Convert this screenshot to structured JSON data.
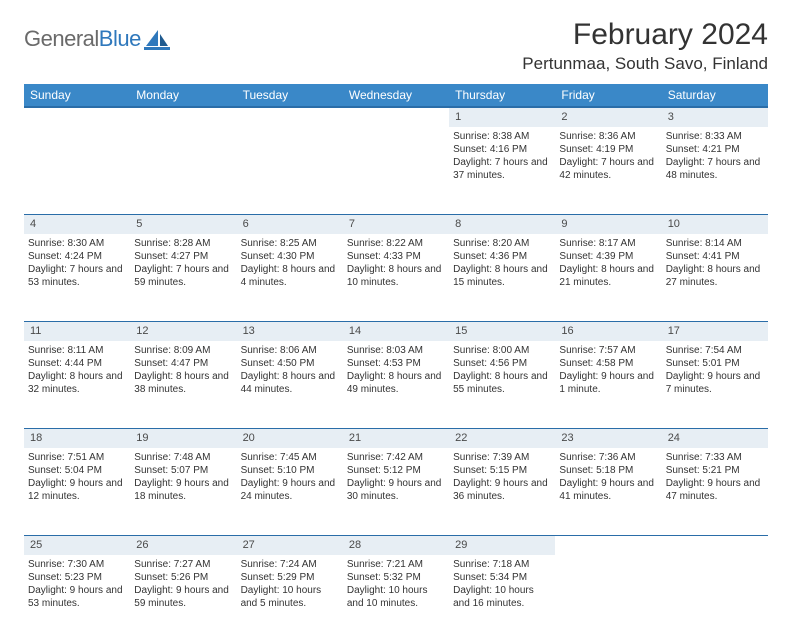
{
  "logo": {
    "word1": "General",
    "word2": "Blue"
  },
  "title": "February 2024",
  "location": "Pertunmaa, South Savo, Finland",
  "colors": {
    "header_bg": "#3a88c8",
    "header_border": "#2a6da8",
    "daynum_bg": "#e7eef4",
    "text": "#333333",
    "logo_gray": "#6a6a6a",
    "logo_blue": "#2f78bc"
  },
  "weekdays": [
    "Sunday",
    "Monday",
    "Tuesday",
    "Wednesday",
    "Thursday",
    "Friday",
    "Saturday"
  ],
  "weeks": [
    [
      null,
      null,
      null,
      null,
      {
        "n": 1,
        "sr": "8:38 AM",
        "ss": "4:16 PM",
        "dl": "7 hours and 37 minutes."
      },
      {
        "n": 2,
        "sr": "8:36 AM",
        "ss": "4:19 PM",
        "dl": "7 hours and 42 minutes."
      },
      {
        "n": 3,
        "sr": "8:33 AM",
        "ss": "4:21 PM",
        "dl": "7 hours and 48 minutes."
      }
    ],
    [
      {
        "n": 4,
        "sr": "8:30 AM",
        "ss": "4:24 PM",
        "dl": "7 hours and 53 minutes."
      },
      {
        "n": 5,
        "sr": "8:28 AM",
        "ss": "4:27 PM",
        "dl": "7 hours and 59 minutes."
      },
      {
        "n": 6,
        "sr": "8:25 AM",
        "ss": "4:30 PM",
        "dl": "8 hours and 4 minutes."
      },
      {
        "n": 7,
        "sr": "8:22 AM",
        "ss": "4:33 PM",
        "dl": "8 hours and 10 minutes."
      },
      {
        "n": 8,
        "sr": "8:20 AM",
        "ss": "4:36 PM",
        "dl": "8 hours and 15 minutes."
      },
      {
        "n": 9,
        "sr": "8:17 AM",
        "ss": "4:39 PM",
        "dl": "8 hours and 21 minutes."
      },
      {
        "n": 10,
        "sr": "8:14 AM",
        "ss": "4:41 PM",
        "dl": "8 hours and 27 minutes."
      }
    ],
    [
      {
        "n": 11,
        "sr": "8:11 AM",
        "ss": "4:44 PM",
        "dl": "8 hours and 32 minutes."
      },
      {
        "n": 12,
        "sr": "8:09 AM",
        "ss": "4:47 PM",
        "dl": "8 hours and 38 minutes."
      },
      {
        "n": 13,
        "sr": "8:06 AM",
        "ss": "4:50 PM",
        "dl": "8 hours and 44 minutes."
      },
      {
        "n": 14,
        "sr": "8:03 AM",
        "ss": "4:53 PM",
        "dl": "8 hours and 49 minutes."
      },
      {
        "n": 15,
        "sr": "8:00 AM",
        "ss": "4:56 PM",
        "dl": "8 hours and 55 minutes."
      },
      {
        "n": 16,
        "sr": "7:57 AM",
        "ss": "4:58 PM",
        "dl": "9 hours and 1 minute."
      },
      {
        "n": 17,
        "sr": "7:54 AM",
        "ss": "5:01 PM",
        "dl": "9 hours and 7 minutes."
      }
    ],
    [
      {
        "n": 18,
        "sr": "7:51 AM",
        "ss": "5:04 PM",
        "dl": "9 hours and 12 minutes."
      },
      {
        "n": 19,
        "sr": "7:48 AM",
        "ss": "5:07 PM",
        "dl": "9 hours and 18 minutes."
      },
      {
        "n": 20,
        "sr": "7:45 AM",
        "ss": "5:10 PM",
        "dl": "9 hours and 24 minutes."
      },
      {
        "n": 21,
        "sr": "7:42 AM",
        "ss": "5:12 PM",
        "dl": "9 hours and 30 minutes."
      },
      {
        "n": 22,
        "sr": "7:39 AM",
        "ss": "5:15 PM",
        "dl": "9 hours and 36 minutes."
      },
      {
        "n": 23,
        "sr": "7:36 AM",
        "ss": "5:18 PM",
        "dl": "9 hours and 41 minutes."
      },
      {
        "n": 24,
        "sr": "7:33 AM",
        "ss": "5:21 PM",
        "dl": "9 hours and 47 minutes."
      }
    ],
    [
      {
        "n": 25,
        "sr": "7:30 AM",
        "ss": "5:23 PM",
        "dl": "9 hours and 53 minutes."
      },
      {
        "n": 26,
        "sr": "7:27 AM",
        "ss": "5:26 PM",
        "dl": "9 hours and 59 minutes."
      },
      {
        "n": 27,
        "sr": "7:24 AM",
        "ss": "5:29 PM",
        "dl": "10 hours and 5 minutes."
      },
      {
        "n": 28,
        "sr": "7:21 AM",
        "ss": "5:32 PM",
        "dl": "10 hours and 10 minutes."
      },
      {
        "n": 29,
        "sr": "7:18 AM",
        "ss": "5:34 PM",
        "dl": "10 hours and 16 minutes."
      },
      null,
      null
    ]
  ],
  "labels": {
    "sunrise": "Sunrise:",
    "sunset": "Sunset:",
    "daylight": "Daylight:"
  }
}
